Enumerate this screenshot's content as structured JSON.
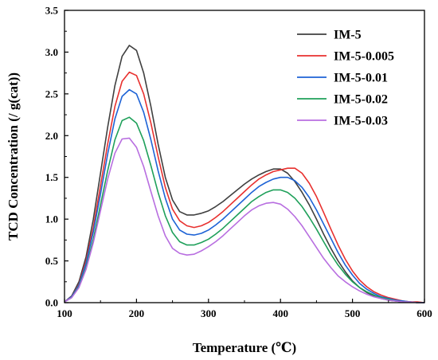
{
  "chart_data": {
    "type": "line",
    "xlabel": "Temperature (℃)",
    "ylabel": "TCD Concentration (/ g(cat))",
    "xlim": [
      100,
      600
    ],
    "ylim": [
      0,
      3.5
    ],
    "xticks": [
      100,
      200,
      300,
      400,
      500,
      600
    ],
    "yticks": [
      0.0,
      0.5,
      1.0,
      1.5,
      2.0,
      2.5,
      3.0,
      3.5
    ],
    "xtick_labels": [
      "100",
      "200",
      "300",
      "400",
      "500",
      "600"
    ],
    "ytick_labels": [
      "0.0",
      "0.5",
      "1.0",
      "1.5",
      "2.0",
      "2.5",
      "3.0",
      "3.5"
    ],
    "legend": "top-right",
    "grid": false,
    "series": [
      {
        "name": "IM-5",
        "color": "#404040",
        "x": [
          100,
          110,
          120,
          130,
          140,
          150,
          160,
          170,
          180,
          190,
          200,
          210,
          220,
          230,
          240,
          250,
          260,
          270,
          280,
          290,
          300,
          310,
          320,
          330,
          340,
          350,
          360,
          370,
          380,
          390,
          400,
          410,
          420,
          430,
          440,
          450,
          460,
          470,
          480,
          490,
          500,
          510,
          520,
          530,
          540,
          550,
          560,
          570,
          580,
          590,
          600
        ],
        "y": [
          0.01,
          0.08,
          0.25,
          0.55,
          1.0,
          1.55,
          2.1,
          2.6,
          2.95,
          3.08,
          3.02,
          2.75,
          2.35,
          1.9,
          1.5,
          1.23,
          1.09,
          1.05,
          1.05,
          1.07,
          1.1,
          1.15,
          1.21,
          1.28,
          1.35,
          1.42,
          1.48,
          1.53,
          1.57,
          1.6,
          1.6,
          1.55,
          1.45,
          1.32,
          1.17,
          1.0,
          0.82,
          0.65,
          0.5,
          0.37,
          0.26,
          0.18,
          0.12,
          0.08,
          0.05,
          0.03,
          0.02,
          0.01,
          0.01,
          0.0,
          0.0
        ]
      },
      {
        "name": "IM-5-0.005",
        "color": "#e8312f",
        "x": [
          100,
          110,
          120,
          130,
          140,
          150,
          160,
          170,
          180,
          190,
          200,
          210,
          220,
          230,
          240,
          250,
          260,
          270,
          280,
          290,
          300,
          310,
          320,
          330,
          340,
          350,
          360,
          370,
          380,
          390,
          400,
          410,
          420,
          430,
          440,
          450,
          460,
          470,
          480,
          490,
          500,
          510,
          520,
          530,
          540,
          550,
          560,
          570,
          580,
          590,
          600
        ],
        "y": [
          0.01,
          0.07,
          0.22,
          0.5,
          0.9,
          1.4,
          1.9,
          2.35,
          2.65,
          2.76,
          2.72,
          2.5,
          2.15,
          1.75,
          1.38,
          1.12,
          0.98,
          0.92,
          0.9,
          0.92,
          0.96,
          1.02,
          1.09,
          1.17,
          1.25,
          1.33,
          1.41,
          1.48,
          1.53,
          1.57,
          1.59,
          1.61,
          1.61,
          1.55,
          1.43,
          1.27,
          1.08,
          0.88,
          0.69,
          0.52,
          0.38,
          0.27,
          0.19,
          0.13,
          0.09,
          0.06,
          0.04,
          0.02,
          0.01,
          0.01,
          0.0
        ]
      },
      {
        "name": "IM-5-0.01",
        "color": "#1e63d6",
        "x": [
          100,
          110,
          120,
          130,
          140,
          150,
          160,
          170,
          180,
          190,
          200,
          210,
          220,
          230,
          240,
          250,
          260,
          270,
          280,
          290,
          300,
          310,
          320,
          330,
          340,
          350,
          360,
          370,
          380,
          390,
          400,
          410,
          420,
          430,
          440,
          450,
          460,
          470,
          480,
          490,
          500,
          510,
          520,
          530,
          540,
          550,
          560,
          570,
          580,
          590,
          600
        ],
        "y": [
          0.01,
          0.07,
          0.21,
          0.47,
          0.85,
          1.3,
          1.78,
          2.2,
          2.47,
          2.55,
          2.5,
          2.28,
          1.95,
          1.58,
          1.25,
          1.0,
          0.87,
          0.82,
          0.81,
          0.83,
          0.87,
          0.93,
          1.0,
          1.08,
          1.16,
          1.24,
          1.32,
          1.39,
          1.44,
          1.48,
          1.5,
          1.5,
          1.46,
          1.38,
          1.26,
          1.11,
          0.94,
          0.77,
          0.6,
          0.45,
          0.33,
          0.23,
          0.16,
          0.11,
          0.07,
          0.05,
          0.03,
          0.02,
          0.01,
          0.0,
          0.0
        ]
      },
      {
        "name": "IM-5-0.02",
        "color": "#1fa05a",
        "x": [
          100,
          110,
          120,
          130,
          140,
          150,
          160,
          170,
          180,
          190,
          200,
          210,
          220,
          230,
          240,
          250,
          260,
          270,
          280,
          290,
          300,
          310,
          320,
          330,
          340,
          350,
          360,
          370,
          380,
          390,
          400,
          410,
          420,
          430,
          440,
          450,
          460,
          470,
          480,
          490,
          500,
          510,
          520,
          530,
          540,
          550,
          560,
          570,
          580,
          590,
          600
        ],
        "y": [
          0.01,
          0.06,
          0.19,
          0.42,
          0.76,
          1.17,
          1.58,
          1.95,
          2.18,
          2.22,
          2.15,
          1.94,
          1.64,
          1.32,
          1.04,
          0.84,
          0.73,
          0.69,
          0.69,
          0.72,
          0.76,
          0.82,
          0.89,
          0.97,
          1.05,
          1.13,
          1.21,
          1.27,
          1.32,
          1.35,
          1.35,
          1.32,
          1.25,
          1.15,
          1.02,
          0.88,
          0.73,
          0.58,
          0.45,
          0.34,
          0.25,
          0.18,
          0.13,
          0.09,
          0.06,
          0.04,
          0.02,
          0.01,
          0.01,
          0.0,
          0.0
        ]
      },
      {
        "name": "IM-5-0.03",
        "color": "#b86ee0",
        "x": [
          100,
          110,
          120,
          130,
          140,
          150,
          160,
          170,
          180,
          190,
          200,
          210,
          220,
          230,
          240,
          250,
          260,
          270,
          280,
          290,
          300,
          310,
          320,
          330,
          340,
          350,
          360,
          370,
          380,
          390,
          400,
          410,
          420,
          430,
          440,
          450,
          460,
          470,
          480,
          490,
          500,
          510,
          520,
          530,
          540,
          550,
          560,
          570,
          580,
          590,
          600
        ],
        "y": [
          0.01,
          0.06,
          0.18,
          0.4,
          0.72,
          1.1,
          1.48,
          1.79,
          1.96,
          1.97,
          1.86,
          1.63,
          1.33,
          1.04,
          0.8,
          0.65,
          0.59,
          0.57,
          0.58,
          0.62,
          0.67,
          0.73,
          0.8,
          0.88,
          0.96,
          1.04,
          1.11,
          1.16,
          1.19,
          1.2,
          1.18,
          1.12,
          1.03,
          0.92,
          0.79,
          0.66,
          0.53,
          0.42,
          0.32,
          0.25,
          0.19,
          0.14,
          0.1,
          0.07,
          0.05,
          0.03,
          0.02,
          0.01,
          0.01,
          0.0,
          0.0
        ]
      }
    ]
  }
}
